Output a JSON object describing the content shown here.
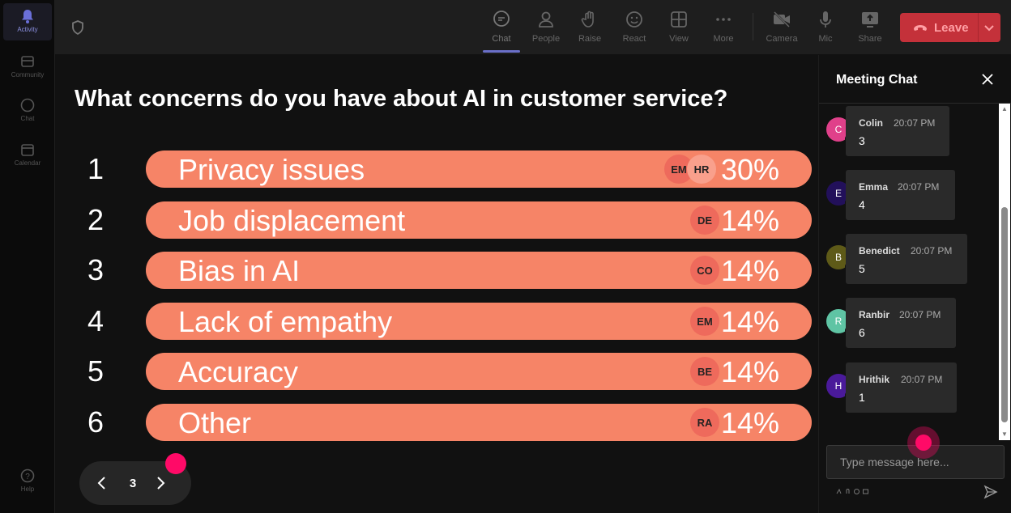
{
  "rail": {
    "items": [
      {
        "label": "Activity",
        "icon": "bell-icon"
      },
      {
        "label": "Community",
        "icon": "community-icon"
      },
      {
        "label": "Chat",
        "icon": "chat-icon"
      },
      {
        "label": "Calendar",
        "icon": "calendar-icon"
      }
    ],
    "help_label": "Help"
  },
  "toolbar": {
    "buttons": [
      {
        "label": "Chat",
        "icon": "chat-icon"
      },
      {
        "label": "People",
        "icon": "people-icon"
      },
      {
        "label": "Raise",
        "icon": "raise-hand-icon"
      },
      {
        "label": "React",
        "icon": "react-icon"
      },
      {
        "label": "View",
        "icon": "view-icon"
      },
      {
        "label": "More",
        "icon": "more-icon"
      },
      {
        "label": "Camera",
        "icon": "camera-off-icon"
      },
      {
        "label": "Mic",
        "icon": "mic-icon"
      },
      {
        "label": "Share",
        "icon": "share-icon"
      }
    ],
    "leave_label": "Leave",
    "colors": {
      "leave": "#c4313a",
      "active_underline": "#6a6fc8"
    }
  },
  "poll": {
    "question": "What concerns do you have about AI in customer service?",
    "bar_color": "#f68467",
    "options": [
      {
        "rank": "1",
        "label": "Privacy issues",
        "percent": "30%",
        "voters": [
          "EM",
          "HR"
        ]
      },
      {
        "rank": "2",
        "label": "Job displacement",
        "percent": "14%",
        "voters": [
          "DE"
        ]
      },
      {
        "rank": "3",
        "label": "Bias in AI",
        "percent": "14%",
        "voters": [
          "CO"
        ]
      },
      {
        "rank": "4",
        "label": "Lack of empathy",
        "percent": "14%",
        "voters": [
          "EM"
        ]
      },
      {
        "rank": "5",
        "label": "Accuracy",
        "percent": "14%",
        "voters": [
          "BE"
        ]
      },
      {
        "rank": "6",
        "label": "Other",
        "percent": "14%",
        "voters": [
          "RA"
        ]
      }
    ],
    "pager": {
      "page": "3"
    }
  },
  "chat": {
    "title": "Meeting Chat",
    "messages": [
      {
        "initial": "C",
        "name": "Colin",
        "time": "20:07 PM",
        "text": "3",
        "color": "#e0408a"
      },
      {
        "initial": "E",
        "name": "Emma",
        "time": "20:07 PM",
        "text": "4",
        "color": "#22105a"
      },
      {
        "initial": "B",
        "name": "Benedict",
        "time": "20:07 PM",
        "text": "5",
        "color": "#5e5a18"
      },
      {
        "initial": "R",
        "name": "Ranbir",
        "time": "20:07 PM",
        "text": "6",
        "color": "#5fc4a4"
      },
      {
        "initial": "H",
        "name": "Hrithik",
        "time": "20:07 PM",
        "text": "1",
        "color": "#4a1a9a"
      }
    ],
    "input_placeholder": "Type message here..."
  }
}
